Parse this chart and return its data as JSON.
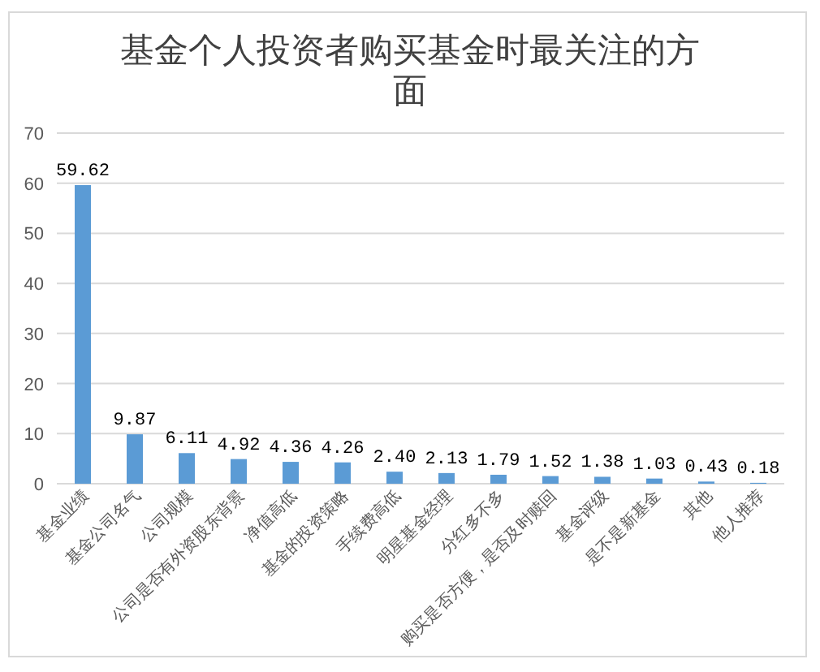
{
  "chart_data": {
    "type": "bar",
    "title": "基金个人投资者购买基金时最关注的方面",
    "categories": [
      "基金业绩",
      "基金公司名气",
      "公司规模",
      "公司是否有外资股东背景",
      "净值高低",
      "基金的投资策略",
      "手续费高低",
      "明星基金经理",
      "分红多不多",
      "购买是否方便，是否及时赎回",
      "基金评级",
      "是不是新基金",
      "其他",
      "他人推荐"
    ],
    "values": [
      59.62,
      9.87,
      6.11,
      4.92,
      4.36,
      4.26,
      2.4,
      2.13,
      1.79,
      1.52,
      1.38,
      1.03,
      0.43,
      0.18
    ],
    "value_labels": [
      "59.62",
      "9.87",
      "6.11",
      "4.92",
      "4.36",
      "4.26",
      "2.40",
      "2.13",
      "1.79",
      "1.52",
      "1.38",
      "1.03",
      "0.43",
      "0.18"
    ],
    "color": "#5b9bd5",
    "ylim": [
      0,
      70
    ],
    "yticks": [
      0,
      10,
      20,
      30,
      40,
      50,
      60,
      70
    ],
    "grid": "y"
  }
}
